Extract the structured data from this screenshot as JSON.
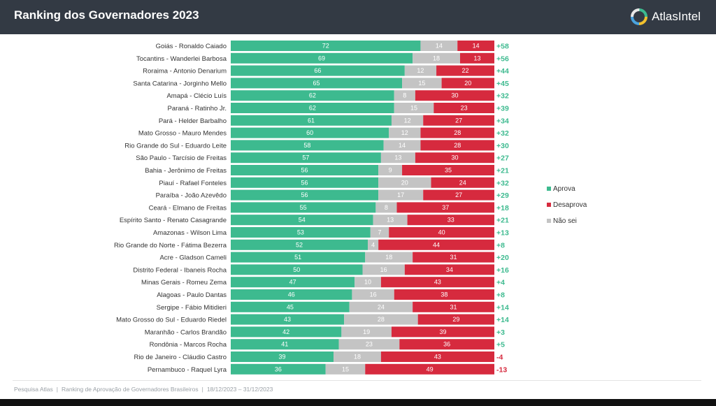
{
  "header": {
    "title": "Ranking dos Governadores 2023",
    "brand": "AtlasIntel",
    "logo_icon": "atlasintel-logo-icon"
  },
  "footer": {
    "source": "Pesquisa Atlas",
    "description": "Ranking de Aprovação de Governadores Brasileiros",
    "period": "18/12/2023 – 31/12/2023"
  },
  "colors": {
    "header_bg": "#333a44",
    "aprova": "#3dba8f",
    "nao_sei": "#c4c4c4",
    "desaprova": "#d62a3e",
    "positive_net": "#3dba8f",
    "negative_net": "#d62a3e"
  },
  "chart_data": {
    "type": "bar",
    "orientation": "horizontal",
    "stacked": true,
    "legend_position": "right",
    "grid": false,
    "xlim": [
      0,
      100
    ],
    "categories": [
      "Goiás - Ronaldo Caiado",
      "Tocantins - Wanderlei Barbosa",
      "Roraima - Antonio Denarium",
      "Santa Catarina - Jorginho Mello",
      "Amapá - Clécio Luís",
      "Paraná - Ratinho Jr.",
      "Pará - Helder Barbalho",
      "Mato Grosso - Mauro Mendes",
      "Rio Grande do Sul - Eduardo Leite",
      "São Paulo - Tarcísio de Freitas",
      "Bahia - Jerônimo de Freitas",
      "Piauí - Rafael Fonteles",
      "Paraíba - João Azevêdo",
      "Ceará - Elmano de Freitas",
      "Espírito Santo - Renato Casagrande",
      "Amazonas - Wilson Lima",
      "Rio Grande do Norte - Fátima Bezerra",
      "Acre - Gladson Cameli",
      "Distrito Federal - Ibaneis Rocha",
      "Minas Gerais - Romeu Zema",
      "Alagoas - Paulo Dantas",
      "Sergipe - Fábio Mitidieri",
      "Mato Grosso do Sul - Eduardo Riedel",
      "Maranhão - Carlos Brandão",
      "Rondônia - Marcos Rocha",
      "Rio de Janeiro - Cláudio Castro",
      "Pernambuco - Raquel Lyra"
    ],
    "series": [
      {
        "name": "Aprova",
        "color": "#3dba8f",
        "values": [
          72,
          69,
          66,
          65,
          62,
          62,
          61,
          60,
          58,
          57,
          56,
          56,
          56,
          55,
          54,
          53,
          52,
          51,
          50,
          47,
          46,
          45,
          43,
          42,
          41,
          39,
          36
        ]
      },
      {
        "name": "Não sei",
        "color": "#c4c4c4",
        "values": [
          14,
          18,
          12,
          15,
          8,
          15,
          12,
          12,
          14,
          13,
          9,
          20,
          17,
          8,
          13,
          7,
          4,
          18,
          16,
          10,
          16,
          24,
          28,
          19,
          23,
          18,
          15
        ]
      },
      {
        "name": "Desaprova",
        "color": "#d62a3e",
        "values": [
          14,
          13,
          22,
          20,
          30,
          23,
          27,
          28,
          28,
          30,
          35,
          24,
          27,
          37,
          33,
          40,
          44,
          31,
          34,
          43,
          38,
          31,
          29,
          39,
          36,
          43,
          49
        ]
      }
    ],
    "net_labels": [
      "+58",
      "+56",
      "+44",
      "+45",
      "+32",
      "+39",
      "+34",
      "+32",
      "+30",
      "+27",
      "+21",
      "+32",
      "+29",
      "+18",
      "+21",
      "+13",
      "+8",
      "+20",
      "+16",
      "+4",
      "+8",
      "+14",
      "+14",
      "+3",
      "+5",
      "-4",
      "-13"
    ],
    "legend": [
      {
        "label": "Aprova",
        "color": "#3dba8f"
      },
      {
        "label": "Desaprova",
        "color": "#d62a3e"
      },
      {
        "label": "Não sei",
        "color": "#c4c4c4"
      }
    ]
  }
}
